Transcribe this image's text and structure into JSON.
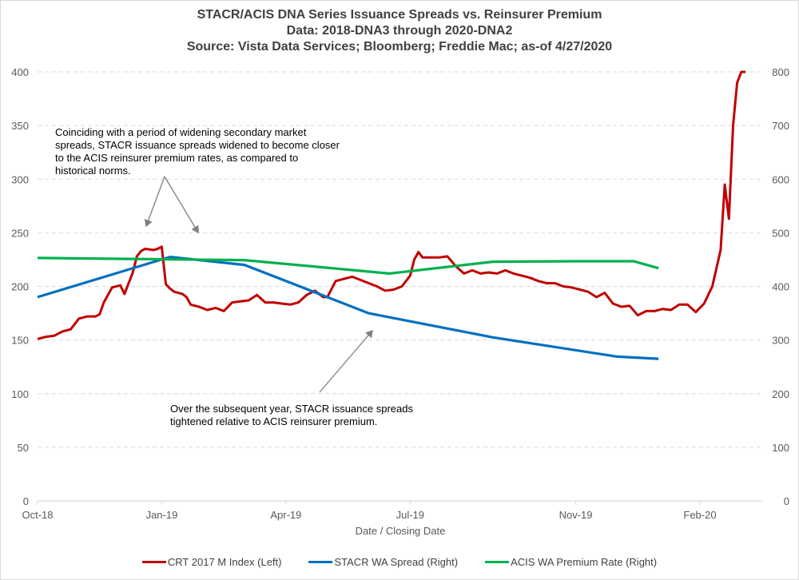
{
  "chart_data": {
    "type": "line",
    "title": "STACR/ACIS DNA Series Issuance Spreads vs. Reinsurer Premium",
    "subtitle_lines": [
      "Data: 2018-DNA3 through 2020-DNA2",
      "Source: Vista Data Services; Bloomberg; Freddie Mac; as-of 4/27/2020"
    ],
    "xlabel": "Date / Closing Date",
    "ylabel_left": "",
    "ylabel_right": "",
    "x_ticks": [
      "Oct-18",
      "Jan-19",
      "Apr-19",
      "Jul-19",
      "Nov-19",
      "Feb-20"
    ],
    "x_tick_months": [
      0,
      3,
      6,
      9,
      13,
      16
    ],
    "x_range_months": [
      0,
      17.5
    ],
    "ylim_left": [
      0,
      400
    ],
    "ylim_right": [
      0,
      800
    ],
    "y_ticks_left": [
      0,
      50,
      100,
      150,
      200,
      250,
      300,
      350,
      400
    ],
    "y_ticks_right": [
      0,
      100,
      200,
      300,
      400,
      500,
      600,
      700,
      800
    ],
    "grid": true,
    "legend_position": "bottom",
    "series": [
      {
        "name": "CRT 2017 M Index (Left)",
        "axis": "left",
        "color": "#C00000",
        "x_months": [
          0.0,
          0.2,
          0.4,
          0.6,
          0.8,
          1.0,
          1.2,
          1.4,
          1.5,
          1.6,
          1.8,
          2.0,
          2.1,
          2.3,
          2.4,
          2.5,
          2.6,
          2.8,
          2.9,
          3.0,
          3.1,
          3.2,
          3.3,
          3.5,
          3.6,
          3.7,
          3.9,
          4.1,
          4.3,
          4.5,
          4.7,
          4.9,
          5.1,
          5.3,
          5.5,
          5.7,
          5.9,
          6.1,
          6.3,
          6.5,
          6.7,
          6.9,
          7.0,
          7.2,
          7.4,
          7.6,
          7.8,
          8.0,
          8.2,
          8.4,
          8.6,
          8.8,
          9.0,
          9.1,
          9.2,
          9.3,
          9.5,
          9.7,
          9.9,
          10.1,
          10.3,
          10.5,
          10.7,
          10.9,
          11.1,
          11.3,
          11.5,
          11.7,
          11.9,
          12.1,
          12.3,
          12.5,
          12.7,
          12.9,
          13.1,
          13.3,
          13.5,
          13.7,
          13.9,
          14.1,
          14.3,
          14.5,
          14.7,
          14.9,
          15.1,
          15.3,
          15.5,
          15.7,
          15.9,
          16.1,
          16.3,
          16.5,
          16.6,
          16.7,
          16.8,
          16.9,
          17.0,
          17.1
        ],
        "values": [
          151,
          153,
          154,
          158,
          160,
          170,
          172,
          172,
          174,
          185,
          199,
          201,
          193,
          213,
          228,
          233,
          235,
          234,
          235,
          237,
          202,
          198,
          195,
          193,
          190,
          183,
          181,
          178,
          180,
          177,
          185,
          186,
          187,
          192,
          185,
          185,
          184,
          183,
          185,
          192,
          196,
          190,
          190,
          205,
          207,
          209,
          206,
          203,
          200,
          196,
          197,
          200,
          210,
          225,
          232,
          227,
          227,
          227,
          228,
          219,
          212,
          215,
          212,
          213,
          212,
          215,
          212,
          210,
          208,
          205,
          203,
          203,
          200,
          199,
          197,
          195,
          190,
          194,
          184,
          181,
          182,
          173,
          177,
          177,
          179,
          178,
          183,
          183,
          176,
          184,
          200,
          234,
          295,
          263,
          350,
          390,
          400,
          400
        ]
      },
      {
        "name": "STACR WA Spread (Right)",
        "axis": "right",
        "color": "#0070C0",
        "x_months": [
          0.0,
          3.2,
          5.0,
          8.0,
          11.0,
          14.0,
          15.0
        ],
        "values": [
          380,
          455,
          440,
          350,
          305,
          269,
          265
        ]
      },
      {
        "name": "ACIS WA Premium Rate (Right)",
        "axis": "right",
        "color": "#00B050",
        "x_months": [
          0.0,
          5.0,
          8.5,
          11.0,
          13.0,
          14.4,
          15.0
        ],
        "values": [
          453,
          449,
          424,
          446,
          447,
          447,
          434
        ]
      }
    ],
    "annotations": [
      {
        "text_lines": [
          "Coinciding with a period of widening secondary market",
          "spreads, STACR issuance spreads widened to become closer",
          "to the ACIS reinsurer premium  rates, as compared to",
          "historical norms."
        ]
      },
      {
        "text_lines": [
          "Over the subsequent year, STACR  issuance spreads",
          "tightened relative to ACIS reinsurer premium."
        ]
      }
    ]
  }
}
